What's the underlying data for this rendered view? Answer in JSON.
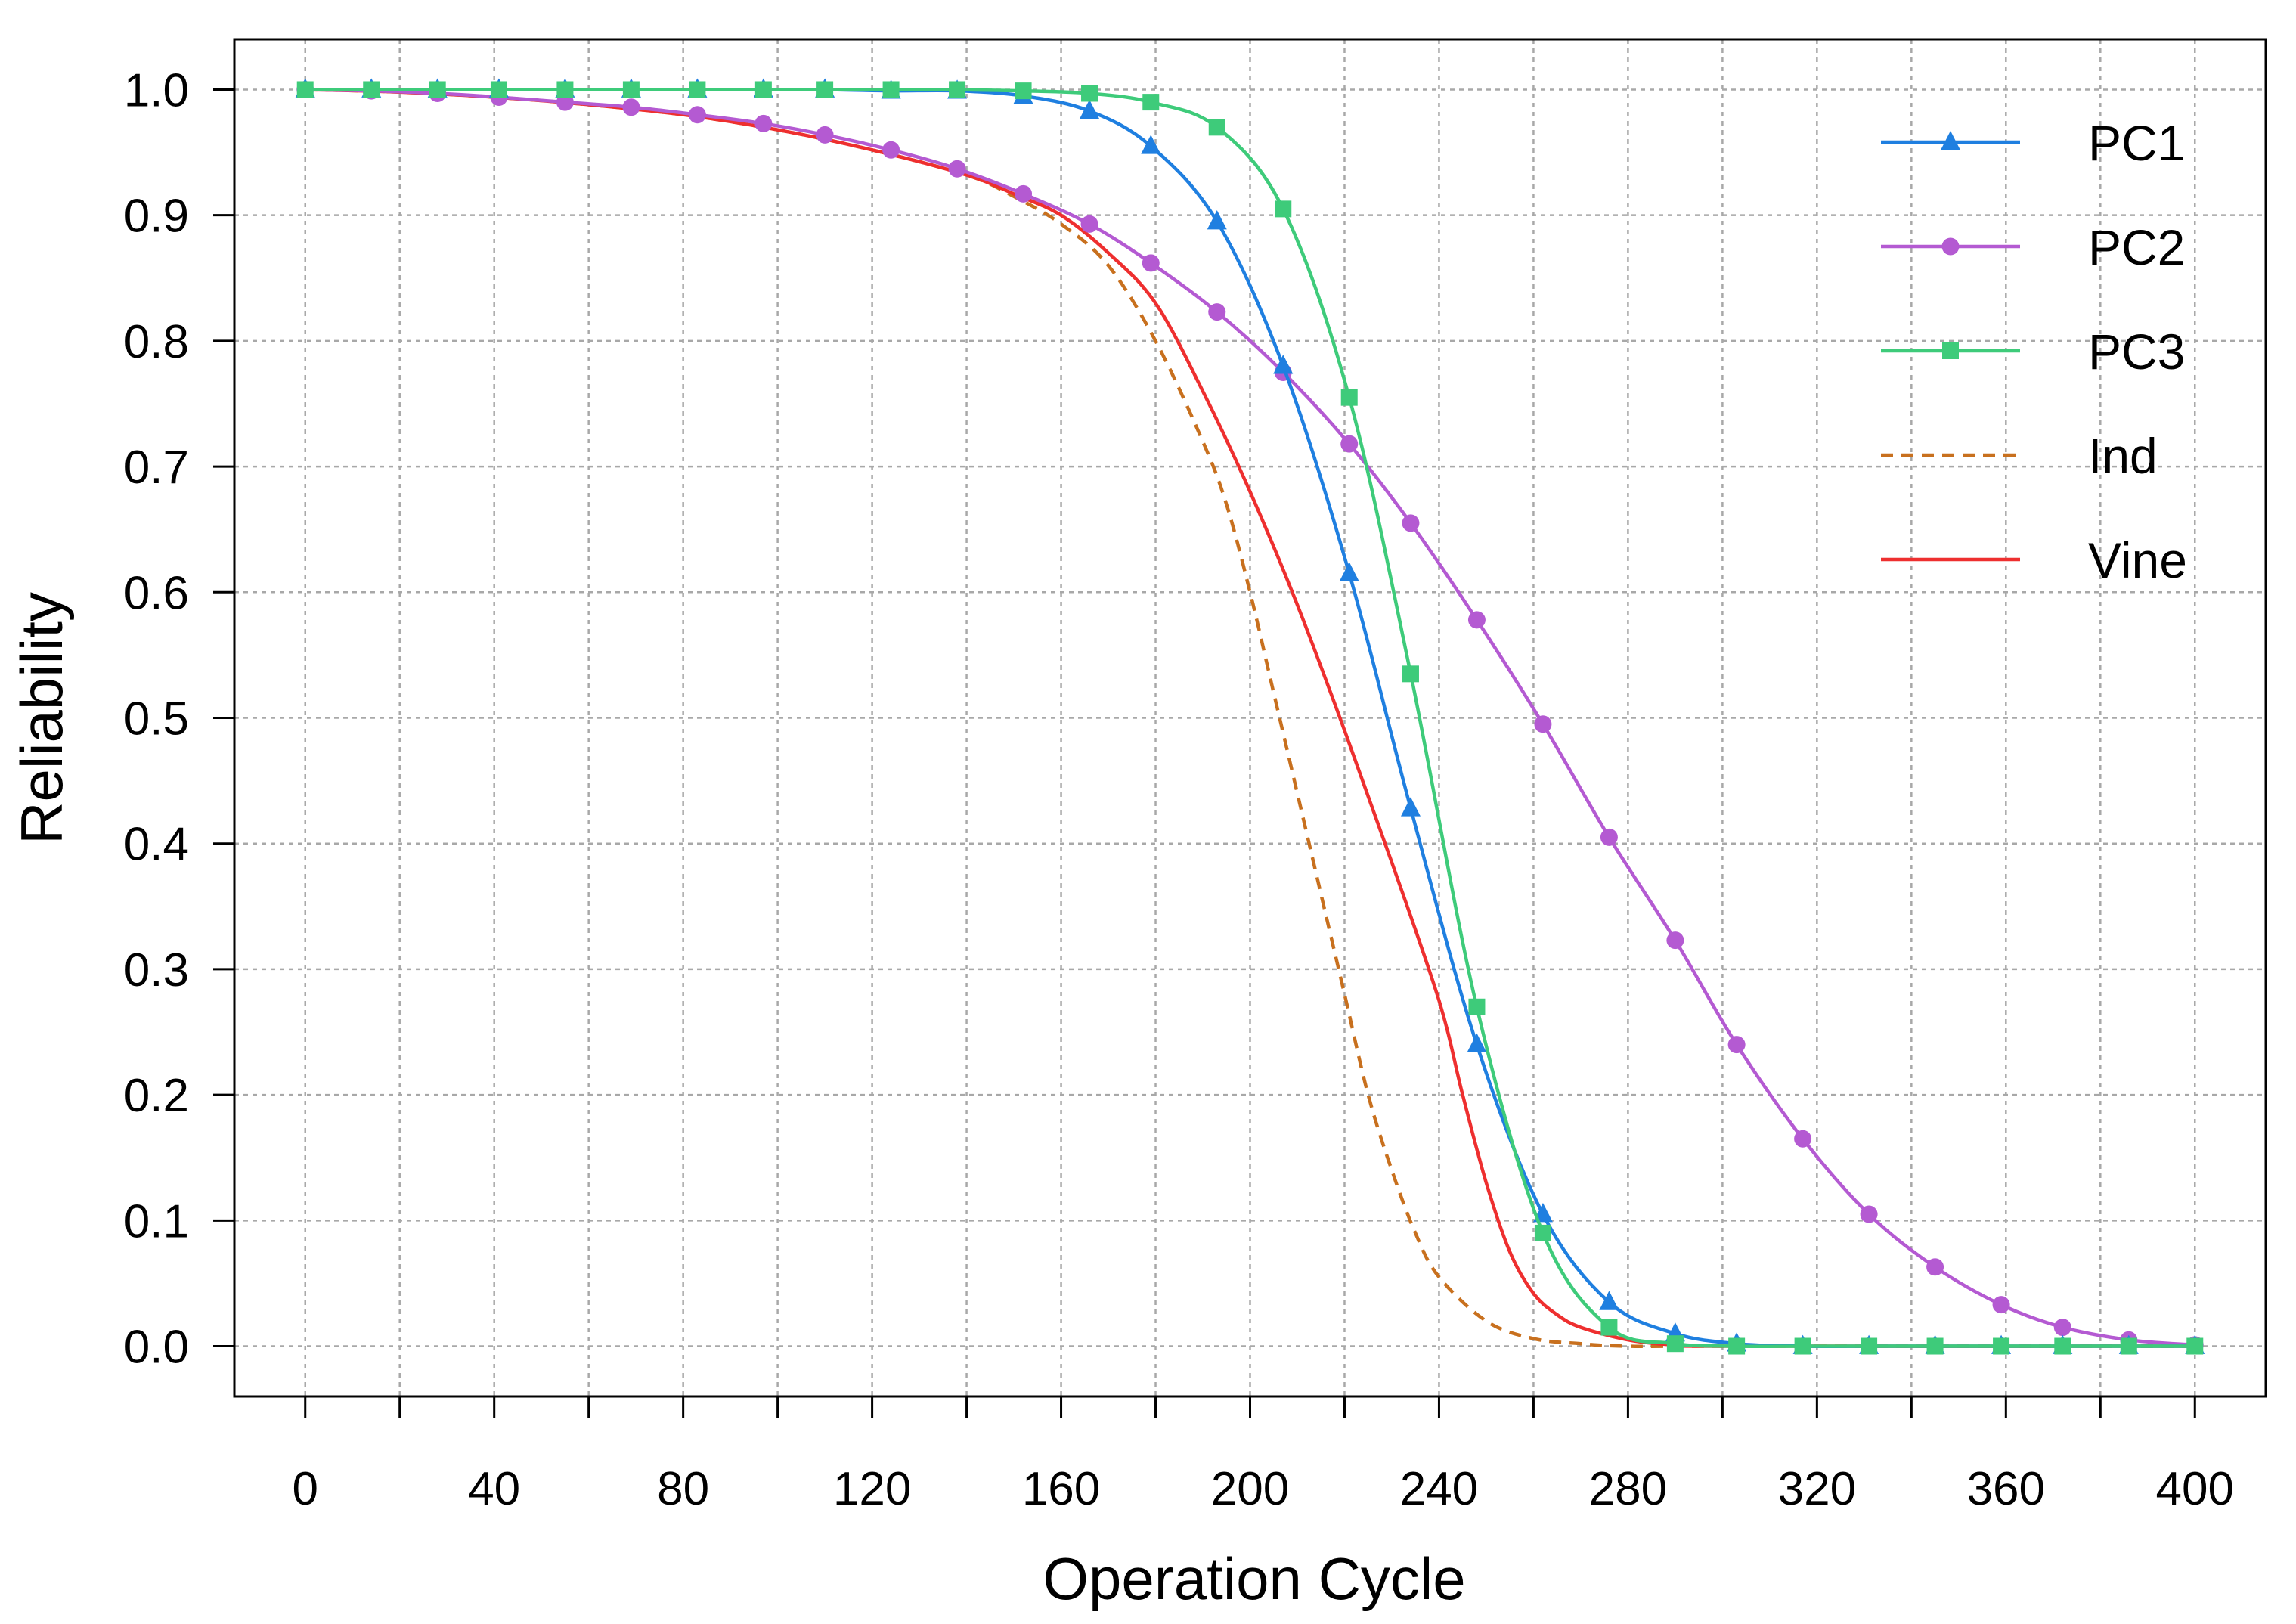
{
  "chart_data": {
    "type": "line",
    "title": "",
    "xlabel": "Operation Cycle",
    "ylabel": "Reliability",
    "xlim": [
      -15,
      415
    ],
    "ylim": [
      -0.04,
      1.04
    ],
    "xticks": [
      0,
      20,
      40,
      60,
      80,
      100,
      120,
      140,
      160,
      180,
      200,
      220,
      240,
      260,
      280,
      300,
      320,
      340,
      360,
      380,
      400
    ],
    "xtick_labels": [
      "0",
      "",
      "40",
      "",
      "80",
      "",
      "120",
      "",
      "160",
      "",
      "200",
      "",
      "240",
      "",
      "280",
      "",
      "320",
      "",
      "360",
      "",
      "400"
    ],
    "yticks": [
      0,
      0.1,
      0.2,
      0.3,
      0.4,
      0.5,
      0.6,
      0.7,
      0.8,
      0.9,
      1.0
    ],
    "ytick_labels": [
      "0.0",
      "0.1",
      "0.2",
      "0.3",
      "0.4",
      "0.5",
      "0.6",
      "0.7",
      "0.8",
      "0.9",
      "1.0"
    ],
    "grid": true,
    "legend_position": "top-right",
    "series": [
      {
        "name": "PC1",
        "color": "#1f7fe0",
        "marker": "triangle",
        "line_style": "solid",
        "x": [
          0,
          14,
          28,
          41,
          55,
          69,
          83,
          97,
          110,
          124,
          138,
          152,
          166,
          179,
          193,
          207,
          221,
          234,
          248,
          262,
          276,
          290,
          303,
          317,
          331,
          345,
          359,
          372,
          386,
          400
        ],
        "y": [
          1.0,
          1.0,
          1.0,
          1.0,
          1.0,
          1.0,
          1.0,
          1.0,
          1.0,
          0.999,
          0.999,
          0.995,
          0.983,
          0.955,
          0.895,
          0.78,
          0.615,
          0.428,
          0.24,
          0.105,
          0.035,
          0.01,
          0.002,
          0.0,
          0.0,
          0.0,
          0.0,
          0.0,
          0.0,
          0.0
        ]
      },
      {
        "name": "PC2",
        "color": "#b45ad2",
        "marker": "circle",
        "line_style": "solid",
        "x": [
          0,
          14,
          28,
          41,
          55,
          69,
          83,
          97,
          110,
          124,
          138,
          152,
          166,
          179,
          193,
          207,
          221,
          234,
          248,
          262,
          276,
          290,
          303,
          317,
          331,
          345,
          359,
          372,
          386,
          400
        ],
        "y": [
          1.0,
          0.999,
          0.997,
          0.994,
          0.99,
          0.986,
          0.98,
          0.973,
          0.964,
          0.952,
          0.937,
          0.917,
          0.893,
          0.862,
          0.823,
          0.775,
          0.718,
          0.655,
          0.578,
          0.495,
          0.405,
          0.323,
          0.24,
          0.165,
          0.105,
          0.063,
          0.033,
          0.015,
          0.005,
          0.001
        ]
      },
      {
        "name": "PC3",
        "color": "#3ecb7a",
        "marker": "square",
        "line_style": "solid",
        "x": [
          0,
          14,
          28,
          41,
          55,
          69,
          83,
          97,
          110,
          124,
          138,
          152,
          166,
          179,
          193,
          207,
          221,
          234,
          248,
          262,
          276,
          290,
          303,
          317,
          331,
          345,
          359,
          372,
          386,
          400
        ],
        "y": [
          1.0,
          1.0,
          1.0,
          1.0,
          1.0,
          1.0,
          1.0,
          1.0,
          1.0,
          1.0,
          1.0,
          0.999,
          0.997,
          0.99,
          0.97,
          0.905,
          0.755,
          0.535,
          0.27,
          0.09,
          0.015,
          0.002,
          0.0,
          0.0,
          0.0,
          0.0,
          0.0,
          0.0,
          0.0,
          0.0
        ]
      },
      {
        "name": "Ind",
        "color": "#c8701e",
        "marker": "none",
        "line_style": "dashed",
        "x": [
          0,
          20,
          40,
          60,
          80,
          100,
          120,
          140,
          150,
          160,
          170,
          180,
          190,
          195,
          200,
          205,
          210,
          215,
          220,
          225,
          230,
          235,
          240,
          250,
          260,
          270,
          280,
          300,
          400
        ],
        "y": [
          1.0,
          0.998,
          0.994,
          0.988,
          0.98,
          0.968,
          0.952,
          0.932,
          0.915,
          0.893,
          0.86,
          0.8,
          0.72,
          0.67,
          0.6,
          0.52,
          0.44,
          0.36,
          0.28,
          0.2,
          0.14,
          0.09,
          0.055,
          0.02,
          0.006,
          0.002,
          0.0,
          0.0,
          0.0
        ]
      },
      {
        "name": "Vine",
        "color": "#ee2f2f",
        "marker": "none",
        "line_style": "solid",
        "x": [
          0,
          20,
          40,
          60,
          80,
          100,
          120,
          140,
          150,
          160,
          170,
          180,
          190,
          200,
          210,
          220,
          230,
          240,
          245,
          250,
          255,
          260,
          265,
          270,
          280,
          290,
          300,
          400
        ],
        "y": [
          1.0,
          0.998,
          0.994,
          0.988,
          0.98,
          0.968,
          0.952,
          0.932,
          0.917,
          0.9,
          0.87,
          0.83,
          0.76,
          0.68,
          0.59,
          0.49,
          0.385,
          0.275,
          0.2,
          0.13,
          0.075,
          0.042,
          0.025,
          0.015,
          0.005,
          0.001,
          0.0,
          0.0
        ]
      }
    ]
  }
}
